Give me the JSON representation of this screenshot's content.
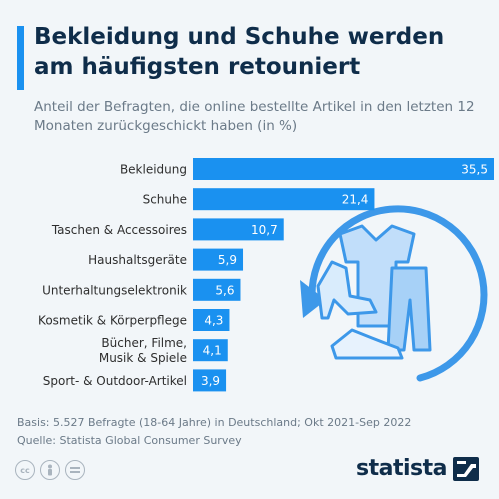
{
  "header": {
    "title": "Bekleidung und Schuhe werden am häufigsten retouniert",
    "subtitle": "Anteil der Befragten, die online bestellte Artikel in den letzten 12 Monaten zurückgeschickt haben (in %)"
  },
  "chart_data": {
    "type": "bar",
    "orientation": "horizontal",
    "title": "Bekleidung und Schuhe werden am häufigsten retouniert",
    "categories": [
      "Bekleidung",
      "Schuhe",
      "Taschen & Accessoires",
      "Haushaltsgeräte",
      "Unterhaltungselektronik",
      "Kosmetik & Körperpflege",
      "Bücher, Filme, Musik & Spiele",
      "Sport- & Outdoor-Artikel"
    ],
    "category_lines": [
      [
        "Bekleidung"
      ],
      [
        "Schuhe"
      ],
      [
        "Taschen & Accessoires"
      ],
      [
        "Haushaltsgeräte"
      ],
      [
        "Unterhaltungselektronik"
      ],
      [
        "Kosmetik & Körperpflege"
      ],
      [
        "Bücher, Filme,",
        "Musik & Spiele"
      ],
      [
        "Sport- & Outdoor-Artikel"
      ]
    ],
    "values": [
      35.5,
      21.4,
      10.7,
      5.9,
      5.6,
      4.3,
      4.1,
      3.9
    ],
    "value_labels": [
      "35,5",
      "21,4",
      "10,7",
      "5,9",
      "5,6",
      "4,3",
      "4,1",
      "3,9"
    ],
    "bar_color": "#1a91f0",
    "xlim": [
      0,
      35.5
    ],
    "grid": false,
    "legend": "none"
  },
  "footer": {
    "basis": "Basis: 5.527 Befragte (18-64 Jahre) in Deutschland; Okt 2021-Sep 2022",
    "source": "Quelle: Statista Global Consumer Survey"
  },
  "license_icons": [
    "cc-icon",
    "person-icon",
    "equals-icon"
  ],
  "brand": {
    "name": "statista",
    "accent": "#1a91f0",
    "dark": "#0f2d4a"
  }
}
